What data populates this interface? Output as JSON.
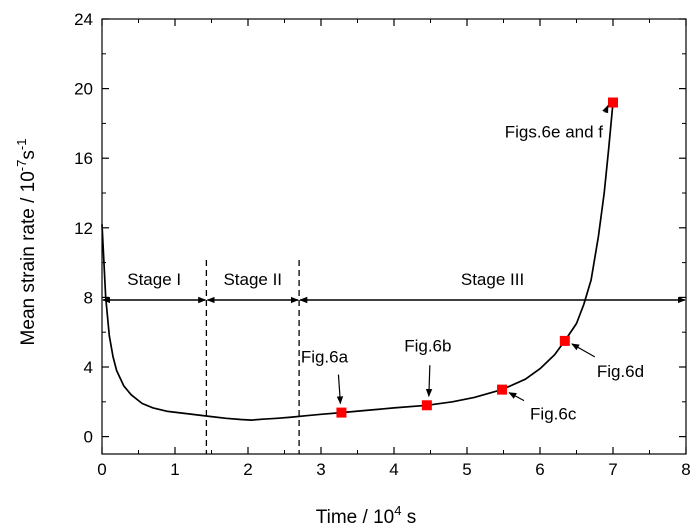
{
  "chart_data": {
    "type": "line",
    "xlabel": {
      "base": "Time / 10",
      "sup": "4",
      "tail": " s"
    },
    "ylabel": {
      "base": "Mean strain rate / 10",
      "sup1": "-7",
      "mid": "s",
      "sup2": "-1"
    },
    "xlim": [
      0,
      8
    ],
    "ylim": [
      -1,
      24
    ],
    "xticks": [
      "0",
      "1",
      "2",
      "3",
      "4",
      "5",
      "6",
      "7",
      "8"
    ],
    "yticks": [
      "0",
      "4",
      "8",
      "12",
      "16",
      "20",
      "24"
    ],
    "grid": false,
    "series": [
      {
        "x": [
          0.0,
          0.02,
          0.05,
          0.1,
          0.15,
          0.2,
          0.3,
          0.4,
          0.55,
          0.7,
          0.9,
          1.1,
          1.3,
          1.5,
          1.7,
          1.9,
          2.05,
          2.2,
          2.4,
          2.6,
          2.8,
          3.0,
          3.28,
          3.6,
          4.0,
          4.45,
          4.8,
          5.1,
          5.48,
          5.8,
          6.0,
          6.2,
          6.34,
          6.5,
          6.6,
          6.7,
          6.8,
          6.88,
          6.94,
          7.0
        ],
        "y": [
          12.2,
          10.5,
          8.0,
          5.8,
          4.6,
          3.8,
          2.9,
          2.4,
          1.9,
          1.65,
          1.45,
          1.35,
          1.25,
          1.15,
          1.05,
          0.98,
          0.95,
          1.0,
          1.05,
          1.12,
          1.2,
          1.28,
          1.38,
          1.5,
          1.65,
          1.8,
          2.0,
          2.25,
          2.7,
          3.3,
          3.9,
          4.7,
          5.5,
          6.5,
          7.6,
          9.0,
          11.5,
          14.0,
          16.5,
          19.2
        ]
      }
    ],
    "markers": [
      {
        "label": "Fig.6a",
        "x": 3.28,
        "y": 1.38
      },
      {
        "label": "Fig.6b",
        "x": 4.45,
        "y": 1.8
      },
      {
        "label": "Fig.6c",
        "x": 5.48,
        "y": 2.7
      },
      {
        "label": "Fig.6d",
        "x": 6.34,
        "y": 5.5
      },
      {
        "label": "Figs.6e and f",
        "x": 7.0,
        "y": 19.2
      }
    ],
    "stages": {
      "arrow_y": 7.85,
      "boundaries": [
        1.43,
        2.7
      ],
      "span": [
        0,
        8
      ],
      "labels": [
        "Stage I",
        "Stage II",
        "Stage III"
      ]
    },
    "colors": {
      "line": "#000000",
      "marker": "#ff0000"
    }
  }
}
